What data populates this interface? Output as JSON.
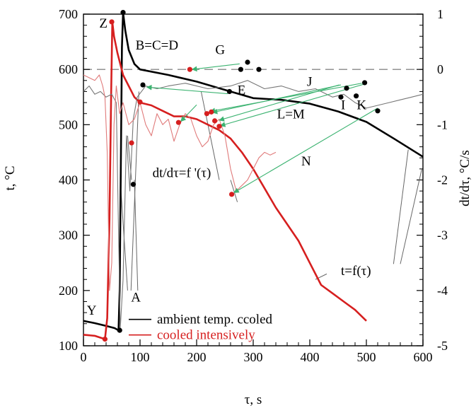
{
  "chart_data": {
    "type": "line",
    "xlabel": "τ, s",
    "ylabel": "t, °C",
    "y2label": "dt/dτ, °C/s",
    "xlim": [
      0,
      600
    ],
    "ylim": [
      100,
      700
    ],
    "y2lim": [
      -5,
      1
    ],
    "x_ticks": [
      0,
      100,
      200,
      300,
      400,
      500,
      600
    ],
    "y_ticks": [
      100,
      200,
      300,
      400,
      500,
      600,
      700
    ],
    "y2_ticks": [
      -5,
      -4,
      -3,
      -2,
      -1,
      0,
      1
    ],
    "x_tick_labels": [
      "0",
      "100",
      "200",
      "300",
      "400",
      "500",
      "600"
    ],
    "y_tick_labels": [
      "100",
      "200",
      "300",
      "400",
      "500",
      "600",
      "700"
    ],
    "y2_tick_labels": [
      "-5",
      "-4",
      "-3",
      "-2",
      "-1",
      "0",
      "1"
    ],
    "zero_reference_line": 0,
    "legend_placement": "bottom-center",
    "legend": [
      {
        "label": "ambient temp. ccoled",
        "color": "#000000"
      },
      {
        "label": "cooled intensively",
        "color": "#d61f1f"
      }
    ],
    "series": [
      {
        "name": "ambient temp. ccoled",
        "kind": "temperature",
        "axis": "left",
        "color": "#000000",
        "points": [
          [
            0,
            145
          ],
          [
            20,
            141
          ],
          [
            40,
            136
          ],
          [
            55,
            132
          ],
          [
            62,
            128
          ],
          [
            64,
            200
          ],
          [
            66,
            420
          ],
          [
            68,
            640
          ],
          [
            70,
            703
          ],
          [
            74,
            670
          ],
          [
            80,
            635
          ],
          [
            90,
            610
          ],
          [
            100,
            600
          ],
          [
            150,
            590
          ],
          [
            200,
            578
          ],
          [
            250,
            563
          ],
          [
            300,
            548
          ],
          [
            350,
            545
          ],
          [
            400,
            538
          ],
          [
            450,
            524
          ],
          [
            500,
            505
          ],
          [
            550,
            474
          ],
          [
            600,
            442
          ]
        ]
      },
      {
        "name": "cooled intensively",
        "kind": "temperature",
        "axis": "left",
        "color": "#d61f1f",
        "points": [
          [
            0,
            120
          ],
          [
            20,
            118
          ],
          [
            38,
            112
          ],
          [
            42,
            150
          ],
          [
            46,
            330
          ],
          [
            49,
            560
          ],
          [
            51,
            686
          ],
          [
            54,
            660
          ],
          [
            60,
            630
          ],
          [
            70,
            590
          ],
          [
            80,
            570
          ],
          [
            90,
            550
          ],
          [
            100,
            540
          ],
          [
            120,
            535
          ],
          [
            140,
            525
          ],
          [
            160,
            515
          ],
          [
            180,
            515
          ],
          [
            200,
            510
          ],
          [
            220,
            500
          ],
          [
            240,
            490
          ],
          [
            260,
            475
          ],
          [
            280,
            450
          ],
          [
            300,
            420
          ],
          [
            320,
            385
          ],
          [
            340,
            350
          ],
          [
            360,
            320
          ],
          [
            380,
            290
          ],
          [
            400,
            250
          ],
          [
            420,
            210
          ],
          [
            440,
            195
          ],
          [
            460,
            180
          ],
          [
            480,
            165
          ],
          [
            500,
            145
          ]
        ]
      },
      {
        "name": "dt/dτ (ambient)",
        "kind": "derivative",
        "axis": "right",
        "color": "#777777",
        "points": [
          [
            0,
            -0.4
          ],
          [
            10,
            -0.3
          ],
          [
            20,
            -0.45
          ],
          [
            30,
            -0.4
          ],
          [
            40,
            -0.5
          ],
          [
            50,
            -0.45
          ],
          [
            58,
            -0.6
          ],
          [
            65,
            -4.7
          ],
          [
            70,
            -3.8
          ],
          [
            76,
            -1.2
          ],
          [
            82,
            -2.2
          ],
          [
            88,
            -0.9
          ],
          [
            95,
            -0.5
          ],
          [
            110,
            -0.3
          ],
          [
            130,
            -0.35
          ],
          [
            150,
            -0.3
          ],
          [
            180,
            -0.25
          ],
          [
            220,
            -0.35
          ],
          [
            260,
            -0.3
          ],
          [
            290,
            -0.2
          ],
          [
            320,
            -0.35
          ],
          [
            350,
            -0.3
          ],
          [
            380,
            -0.4
          ],
          [
            410,
            -0.35
          ],
          [
            440,
            -0.5
          ],
          [
            460,
            -0.45
          ],
          [
            480,
            -0.6
          ],
          [
            500,
            -0.7
          ],
          [
            520,
            -0.65
          ],
          [
            540,
            -0.6
          ],
          [
            560,
            -0.55
          ],
          [
            580,
            -0.5
          ],
          [
            600,
            -0.45
          ]
        ]
      },
      {
        "name": "dt/dτ (intensive)",
        "kind": "derivative",
        "axis": "right",
        "color": "#e07a7a",
        "points": [
          [
            0,
            -0.1
          ],
          [
            10,
            -0.15
          ],
          [
            20,
            -0.2
          ],
          [
            28,
            -0.1
          ],
          [
            34,
            -0.3
          ],
          [
            38,
            -0.5
          ],
          [
            42,
            -1.5
          ],
          [
            46,
            -4.0
          ],
          [
            50,
            -3.5
          ],
          [
            54,
            -1.0
          ],
          [
            58,
            -0.3
          ],
          [
            64,
            -0.8
          ],
          [
            70,
            -0.6
          ],
          [
            80,
            -1.0
          ],
          [
            90,
            -0.9
          ],
          [
            100,
            -0.6
          ],
          [
            110,
            -1.0
          ],
          [
            120,
            -1.2
          ],
          [
            130,
            -0.8
          ],
          [
            140,
            -1.0
          ],
          [
            150,
            -0.9
          ],
          [
            160,
            -1.3
          ],
          [
            170,
            -1.0
          ],
          [
            180,
            -0.8
          ],
          [
            190,
            -0.9
          ],
          [
            200,
            -1.2
          ],
          [
            210,
            -1.4
          ],
          [
            220,
            -1.3
          ],
          [
            230,
            -1.0
          ],
          [
            240,
            -0.9
          ],
          [
            250,
            -1.2
          ],
          [
            260,
            -1.8
          ],
          [
            270,
            -2.2
          ],
          [
            280,
            -2.1
          ],
          [
            290,
            -2.0
          ],
          [
            300,
            -1.8
          ],
          [
            310,
            -1.6
          ],
          [
            320,
            -1.5
          ],
          [
            330,
            -1.55
          ],
          [
            340,
            -1.5
          ]
        ]
      }
    ],
    "markers": [
      {
        "color": "#000000",
        "x": 70,
        "y": 703
      },
      {
        "color": "#000000",
        "x": 105,
        "y": 572
      },
      {
        "color": "#000000",
        "x": 88,
        "y": 392
      },
      {
        "color": "#000000",
        "x": 64,
        "y": 128
      },
      {
        "color": "#000000",
        "x": 258,
        "y": 560
      },
      {
        "color": "#000000",
        "x": 278,
        "y": 600
      },
      {
        "color": "#000000",
        "x": 290,
        "y": 613
      },
      {
        "color": "#000000",
        "x": 310,
        "y": 600
      },
      {
        "color": "#000000",
        "x": 455,
        "y": 550
      },
      {
        "color": "#000000",
        "x": 465,
        "y": 566
      },
      {
        "color": "#000000",
        "x": 482,
        "y": 552
      },
      {
        "color": "#000000",
        "x": 497,
        "y": 576
      },
      {
        "color": "#000000",
        "x": 520,
        "y": 525
      },
      {
        "color": "#d61f1f",
        "x": 50,
        "y": 686
      },
      {
        "color": "#d61f1f",
        "x": 38,
        "y": 112
      },
      {
        "color": "#d61f1f",
        "x": 85,
        "y": 467
      },
      {
        "color": "#d61f1f",
        "x": 100,
        "y": 541
      },
      {
        "color": "#d61f1f",
        "x": 188,
        "y": 600
      },
      {
        "color": "#d61f1f",
        "x": 168,
        "y": 504
      },
      {
        "color": "#d61f1f",
        "x": 218,
        "y": 520
      },
      {
        "color": "#d61f1f",
        "x": 226,
        "y": 523
      },
      {
        "color": "#d61f1f",
        "x": 232,
        "y": 507
      },
      {
        "color": "#d61f1f",
        "x": 240,
        "y": 497
      },
      {
        "color": "#d61f1f",
        "x": 262,
        "y": 374
      }
    ],
    "connector_color": "#3cb371",
    "connectors": [
      {
        "from": [
          276,
          610
        ],
        "to": [
          192,
          600
        ]
      },
      {
        "from": [
          452,
          572
        ],
        "to": [
          240,
          508
        ]
      },
      {
        "from": [
          455,
          572
        ],
        "to": [
          228,
          522
        ]
      },
      {
        "from": [
          492,
          575
        ],
        "to": [
          224,
          524
        ]
      },
      {
        "from": [
          495,
          573
        ],
        "to": [
          242,
          498
        ]
      },
      {
        "from": [
          520,
          530
        ],
        "to": [
          266,
          377
        ]
      },
      {
        "from": [
          200,
          536
        ],
        "to": [
          172,
          506
        ]
      },
      {
        "from": [
          255,
          556
        ],
        "to": [
          112,
          568
        ]
      }
    ],
    "leader_color": "#666666",
    "leaders": [
      {
        "from": [
          78,
          200
        ],
        "to": [
          66,
          385
        ]
      },
      {
        "from": [
          84,
          200
        ],
        "to": [
          98,
          560
        ]
      },
      {
        "from": [
          85,
          400
        ],
        "to": [
          78,
          480
        ]
      },
      {
        "from": [
          240,
          400
        ],
        "to": [
          208,
          560
        ]
      },
      {
        "from": [
          260,
          400
        ],
        "to": [
          272,
          360
        ]
      },
      {
        "from": [
          410,
          220
        ],
        "to": [
          430,
          230
        ]
      },
      {
        "from": [
          548,
          248
        ],
        "to": [
          574,
          455
        ]
      },
      {
        "from": [
          560,
          248
        ],
        "to": [
          598,
          420
        ]
      },
      {
        "from": [
          96,
          200
        ],
        "to": [
          90,
          400
        ]
      }
    ],
    "annotations": [
      {
        "text": "Z",
        "x": 28,
        "y": 676
      },
      {
        "text": "B=C=D",
        "x": 92,
        "y": 636
      },
      {
        "text": "G",
        "x": 233,
        "y": 628
      },
      {
        "text": "E",
        "x": 272,
        "y": 555
      },
      {
        "text": "J",
        "x": 395,
        "y": 570
      },
      {
        "text": "I",
        "x": 455,
        "y": 528
      },
      {
        "text": "K",
        "x": 483,
        "y": 528
      },
      {
        "text": "L=M",
        "x": 342,
        "y": 511
      },
      {
        "text": "N",
        "x": 385,
        "y": 426
      },
      {
        "text": "dt/dτ=f '(τ)",
        "x": 122,
        "y": 405
      },
      {
        "text": "t=f(τ)",
        "x": 455,
        "y": 228
      },
      {
        "text": "Y",
        "x": 6,
        "y": 156
      },
      {
        "text": "A",
        "x": 84,
        "y": 180
      }
    ]
  }
}
